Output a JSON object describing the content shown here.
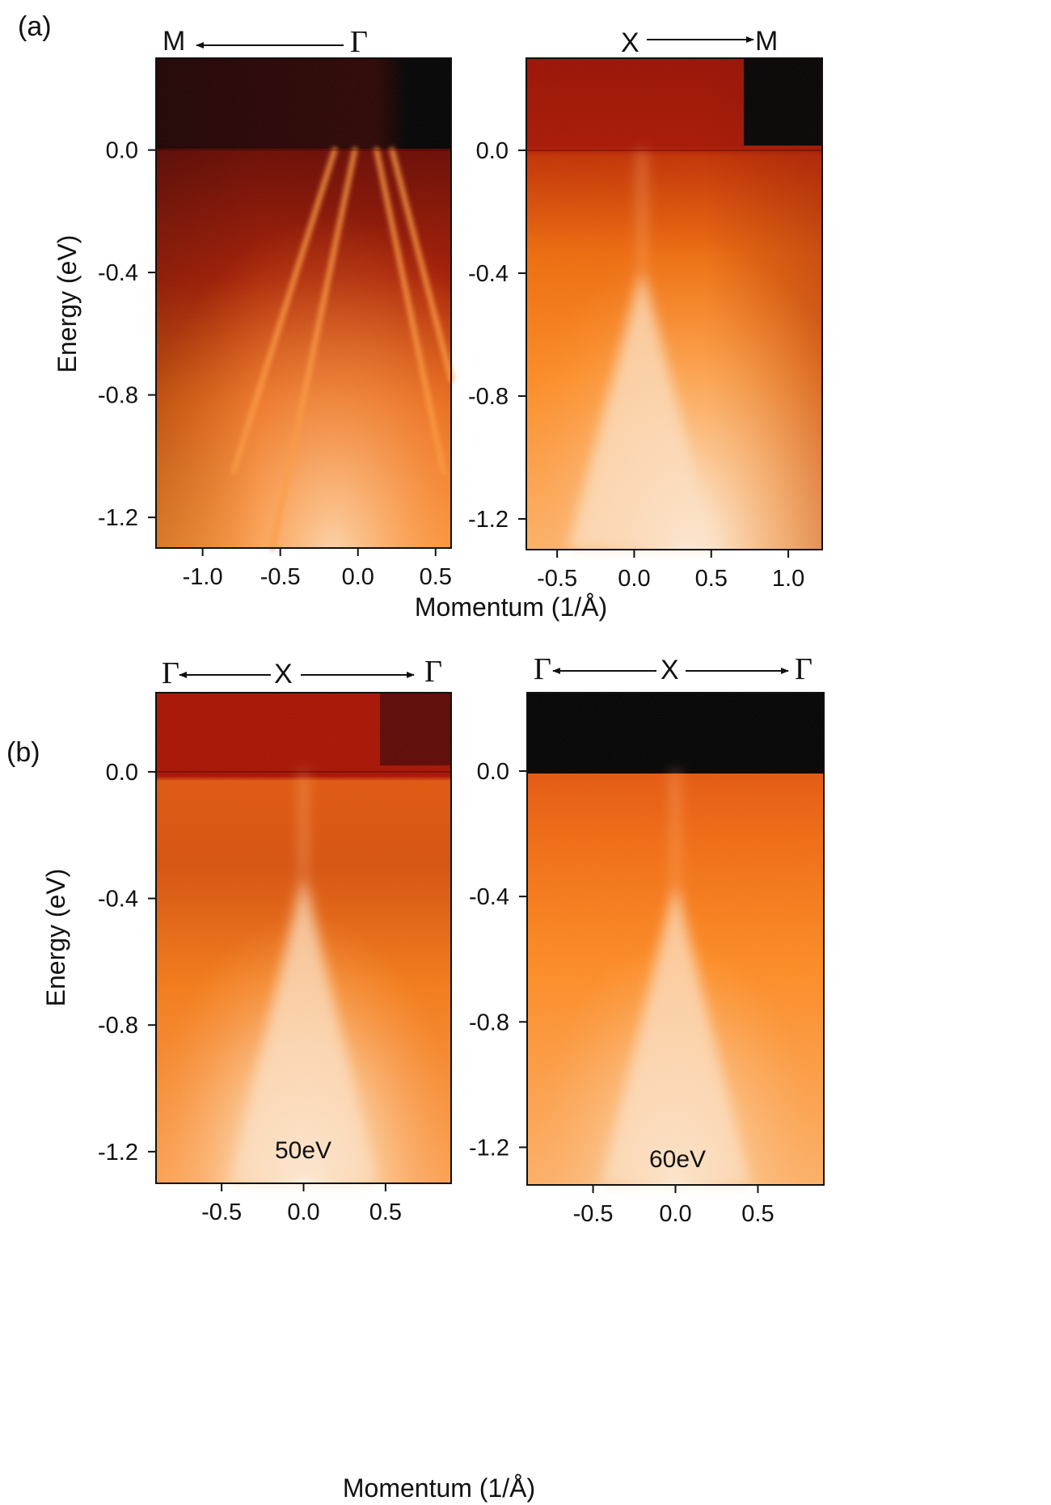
{
  "figure": {
    "panel_a_label": "(a)",
    "panel_b_label": "(b)",
    "xlabel": "Momentum (1/Å)",
    "ylabel": "Energy (eV)"
  },
  "chart_data": [
    {
      "type": "heatmap",
      "panel": "a-left",
      "path": {
        "left": "M",
        "right": "Γ",
        "arrow": "left"
      },
      "xlim": [
        -1.3,
        0.6
      ],
      "ylim": [
        -1.3,
        0.3
      ],
      "xticks": [
        "-1.0",
        "-0.5",
        "0.0",
        "0.5"
      ],
      "xtick_values": [
        -1.0,
        -0.5,
        0.0,
        0.5
      ],
      "yticks": [
        "0.0",
        "-0.4",
        "-0.8",
        "-1.2"
      ],
      "ytick_values": [
        0.0,
        -0.4,
        -0.8,
        -1.2
      ],
      "colormap": [
        "#000000",
        "#8b0a00",
        "#ff7a10",
        "#fff6ee"
      ],
      "fermi_level": 0.0,
      "bands": [
        {
          "x0": -0.02,
          "e0": 0.0,
          "x1": -0.55,
          "e1": -1.3
        },
        {
          "x0": -0.15,
          "e0": 0.0,
          "x1": -0.8,
          "e1": -1.05
        },
        {
          "x0": 0.12,
          "e0": 0.0,
          "x1": 0.55,
          "e1": -1.05
        },
        {
          "x0": 0.22,
          "e0": 0.0,
          "x1": 0.6,
          "e1": -0.75
        }
      ]
    },
    {
      "type": "heatmap",
      "panel": "a-right",
      "path": {
        "left": "X",
        "right": "M",
        "arrow": "right"
      },
      "xlim": [
        -0.7,
        1.22
      ],
      "ylim": [
        -1.3,
        0.3
      ],
      "xticks": [
        "-0.5",
        "0.0",
        "0.5",
        "1.0"
      ],
      "xtick_values": [
        -0.5,
        0.0,
        0.5,
        1.0
      ],
      "yticks": [
        "0.0",
        "-0.4",
        "-0.8",
        "-1.2"
      ],
      "ytick_values": [
        0.0,
        -0.4,
        -0.8,
        -1.2
      ],
      "fermi_level": 0.0,
      "cone_apex": {
        "x": 0.05,
        "e": -0.38
      }
    },
    {
      "type": "heatmap",
      "panel": "b-left",
      "path": {
        "left": "Γ",
        "center": "X",
        "right": "Γ",
        "arrow": "both"
      },
      "photon_energy": "50eV",
      "xlim": [
        -0.9,
        0.9
      ],
      "ylim": [
        -1.3,
        0.25
      ],
      "xticks": [
        "-0.5",
        "0.0",
        "0.5"
      ],
      "xtick_values": [
        -0.5,
        0.0,
        0.5
      ],
      "yticks": [
        "0.0",
        "-0.4",
        "-0.8",
        "-1.2"
      ],
      "ytick_values": [
        0.0,
        -0.4,
        -0.8,
        -1.2
      ],
      "fermi_level": 0.0,
      "cone_apex": {
        "x": 0.0,
        "e": -0.32
      }
    },
    {
      "type": "heatmap",
      "panel": "b-right",
      "path": {
        "left": "Γ",
        "center": "X",
        "right": "Γ",
        "arrow": "both"
      },
      "photon_energy": "60eV",
      "xlim": [
        -0.9,
        0.9
      ],
      "ylim": [
        -1.32,
        0.25
      ],
      "xticks": [
        "-0.5",
        "0.0",
        "0.5"
      ],
      "xtick_values": [
        -0.5,
        0.0,
        0.5
      ],
      "yticks": [
        "0.0",
        "-0.4",
        "-0.8",
        "-1.2"
      ],
      "ytick_values": [
        0.0,
        -0.4,
        -0.8,
        -1.2
      ],
      "fermi_level": 0.0,
      "cone_apex": {
        "x": 0.0,
        "e": -0.35
      }
    }
  ]
}
